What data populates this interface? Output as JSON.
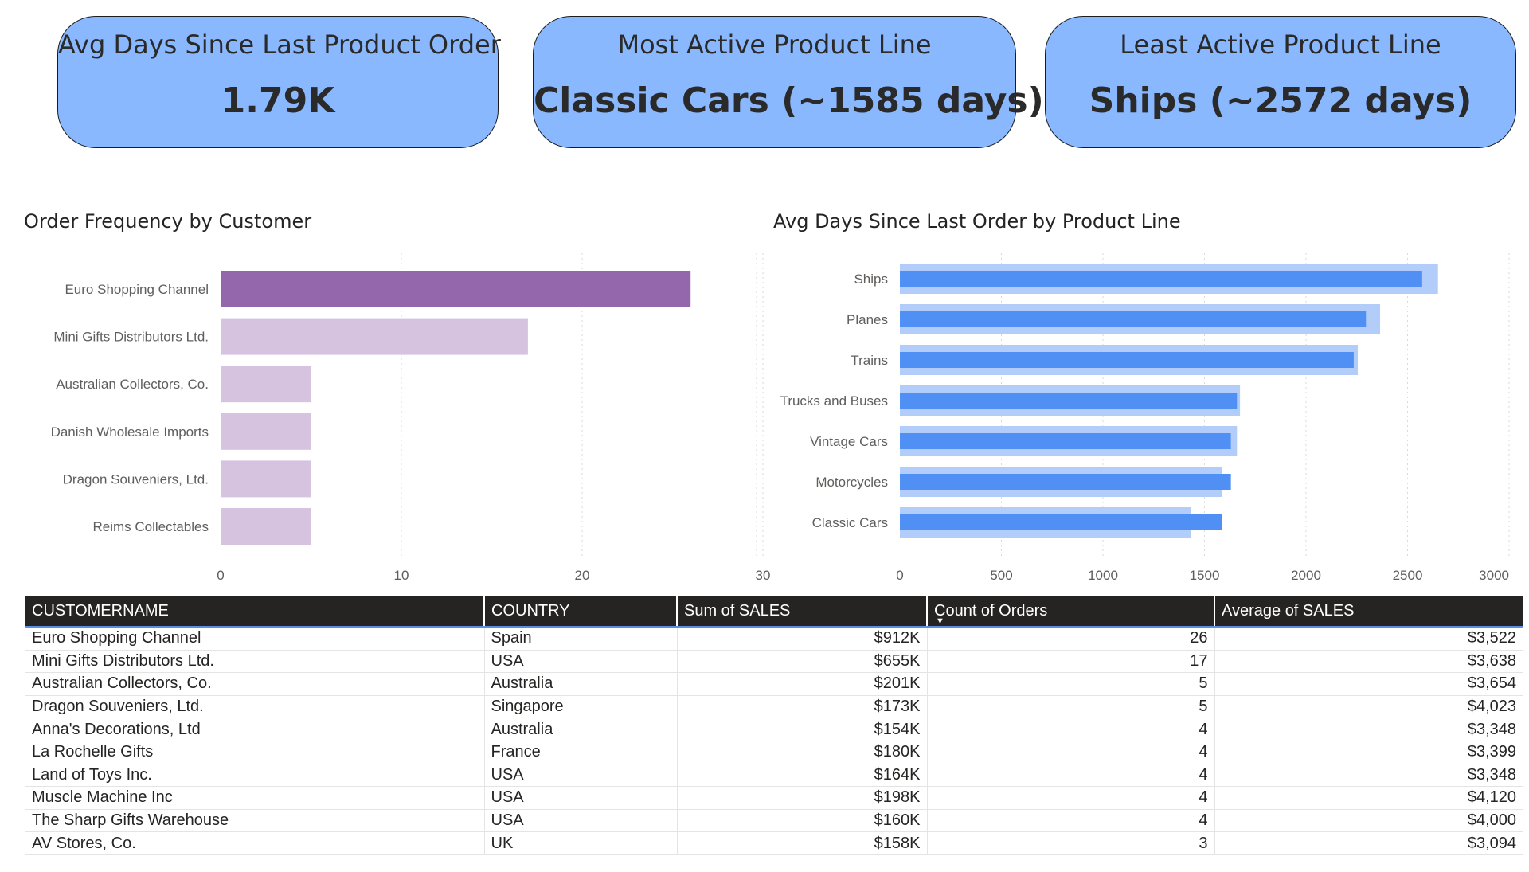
{
  "kpis": [
    {
      "label": "Avg Days Since Last Product Order",
      "value": "1.79K"
    },
    {
      "label": "Most Active Product Line",
      "value": "Classic Cars (~1585 days)"
    },
    {
      "label": "Least Active Product Line",
      "value": "Ships (~2572 days)"
    }
  ],
  "charts": {
    "left_title": "Order Frequency by Customer",
    "right_title": "Avg Days Since Last Order by Product Line"
  },
  "colors": {
    "kpi_bg": "#8ab8ff",
    "bar_highlight": "#9467ad",
    "bar_faded": "#d5c3e0",
    "bar_blue": "#5090f5",
    "bar_blue_light": "#b3cdfb",
    "header_bg": "#252423"
  },
  "chart_data": [
    {
      "type": "bar",
      "orientation": "horizontal",
      "title": "Order Frequency by Customer",
      "categories": [
        "Euro Shopping Channel",
        "Mini Gifts Distributors Ltd.",
        "Australian Collectors, Co.",
        "Danish Wholesale Imports",
        "Dragon Souveniers, Ltd.",
        "Reims Collectables"
      ],
      "values": [
        26,
        17,
        5,
        5,
        5,
        5
      ],
      "highlighted": "Euro Shopping Channel",
      "xlim": [
        0,
        30
      ],
      "xticks": [
        0,
        10,
        20,
        30
      ],
      "grid": true
    },
    {
      "type": "bar",
      "orientation": "horizontal",
      "title": "Avg Days Since Last Order by Product Line",
      "categories": [
        "Ships",
        "Planes",
        "Trains",
        "Trucks and Buses",
        "Vintage Cars",
        "Motorcycles",
        "Classic Cars"
      ],
      "series": [
        {
          "values": [
            2650,
            2365,
            2255,
            1675,
            1660,
            1585,
            1435
          ]
        },
        {
          "values": [
            2572,
            2295,
            2235,
            1660,
            1630,
            1630,
            1585
          ]
        }
      ],
      "xlim": [
        0,
        3000
      ],
      "xticks": [
        0,
        500,
        1000,
        1500,
        2000,
        2500,
        3000
      ],
      "grid": true
    }
  ],
  "table": {
    "columns": [
      "CUSTOMERNAME",
      "COUNTRY",
      "Sum of SALES",
      "Count of Orders",
      "Average of SALES"
    ],
    "sort_column_index": 3,
    "rows": [
      [
        "Euro Shopping Channel",
        "Spain",
        "$912K",
        "26",
        "$3,522"
      ],
      [
        "Mini Gifts Distributors Ltd.",
        "USA",
        "$655K",
        "17",
        "$3,638"
      ],
      [
        "Australian Collectors, Co.",
        "Australia",
        "$201K",
        "5",
        "$3,654"
      ],
      [
        "Dragon Souveniers, Ltd.",
        "Singapore",
        "$173K",
        "5",
        "$4,023"
      ],
      [
        "Anna's Decorations, Ltd",
        "Australia",
        "$154K",
        "4",
        "$3,348"
      ],
      [
        "La Rochelle Gifts",
        "France",
        "$180K",
        "4",
        "$3,399"
      ],
      [
        "Land of Toys Inc.",
        "USA",
        "$164K",
        "4",
        "$3,348"
      ],
      [
        "Muscle Machine Inc",
        "USA",
        "$198K",
        "4",
        "$4,120"
      ],
      [
        "The Sharp Gifts Warehouse",
        "USA",
        "$160K",
        "4",
        "$4,000"
      ],
      [
        "AV Stores, Co.",
        "UK",
        "$158K",
        "3",
        "$3,094"
      ]
    ]
  }
}
